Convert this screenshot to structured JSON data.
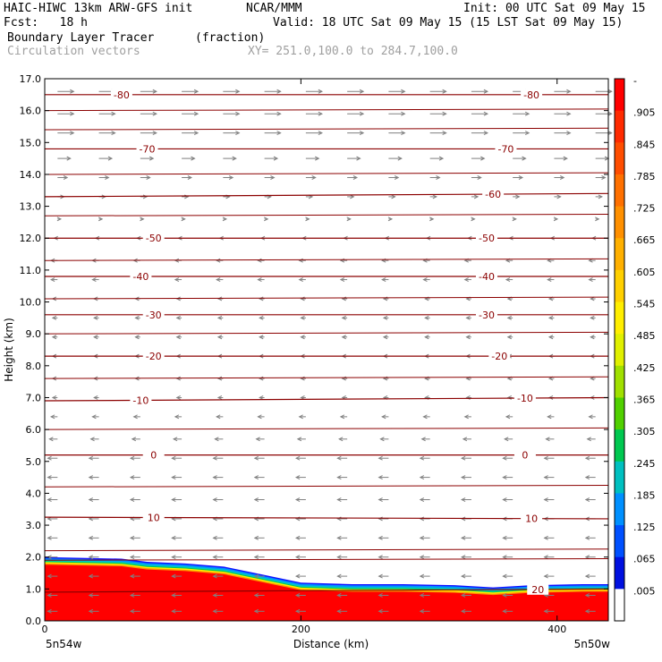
{
  "header": {
    "model": "HAIC-HIWC 13km ARW-GFS init",
    "org": "NCAR/MMM",
    "init": "Init: 00 UTC Sat 09 May 15",
    "fcst": "Fcst:   18 h",
    "valid": "Valid: 18 UTC Sat 09 May 15 (15 LST Sat 09 May 15)",
    "field": "Boundary Layer Tracer",
    "units": "(fraction)",
    "vectors": "Circulation vectors",
    "xy": "XY= 251.0,100.0 to 284.7,100.0"
  },
  "colors": {
    "isotherm": "#8b0000",
    "vector": "#808080",
    "frame": "#000000"
  },
  "chart_data": {
    "type": "heatmap",
    "xlabel": "Distance (km)",
    "ylabel": "Height (km)",
    "xlim": [
      0,
      440
    ],
    "ylim": [
      0,
      17
    ],
    "x_ticks": [
      "0",
      "200",
      "400"
    ],
    "x_tick_values": [
      0,
      200,
      400
    ],
    "x_end_labels": [
      "5n54w",
      "5n50w"
    ],
    "y_ticks": [
      "0.0",
      "1.0",
      "2.0",
      "3.0",
      "4.0",
      "5.0",
      "6.0",
      "7.0",
      "8.0",
      "9.0",
      "10.0",
      "11.0",
      "12.0",
      "13.0",
      "14.0",
      "15.0",
      "16.0",
      "17.0"
    ],
    "colorbar": {
      "labels": [
        "-",
        ".905",
        ".845",
        ".785",
        ".725",
        ".665",
        ".605",
        ".545",
        ".485",
        ".425",
        ".365",
        ".305",
        ".245",
        ".185",
        ".125",
        ".065",
        ".005"
      ],
      "colors": [
        "#ff0000",
        "#ff2a00",
        "#ff4d00",
        "#ff7000",
        "#ff9000",
        "#ffb000",
        "#ffd000",
        "#ffee00",
        "#e0f000",
        "#a0e000",
        "#50d000",
        "#00c850",
        "#00c0c0",
        "#0090ff",
        "#0050ff",
        "#0010e0",
        "#ffffff"
      ]
    },
    "tracer_top_km": [
      [
        0,
        2.0
      ],
      [
        60,
        1.95
      ],
      [
        80,
        1.85
      ],
      [
        110,
        1.8
      ],
      [
        140,
        1.7
      ],
      [
        170,
        1.45
      ],
      [
        200,
        1.2
      ],
      [
        240,
        1.15
      ],
      [
        280,
        1.15
      ],
      [
        320,
        1.12
      ],
      [
        350,
        1.05
      ],
      [
        380,
        1.12
      ],
      [
        420,
        1.15
      ],
      [
        440,
        1.15
      ]
    ],
    "isotherms": [
      {
        "label": "-80",
        "y_km": [
          16.5,
          16.5
        ],
        "label_x": [
          60,
          380
        ]
      },
      {
        "label": "-70",
        "y_km": [
          14.8,
          14.8
        ],
        "label_x": [
          80,
          360
        ]
      },
      {
        "label": "-60",
        "y_km": [
          13.3,
          13.4
        ],
        "label_x": [
          350
        ]
      },
      {
        "label": "-50",
        "y_km": [
          12.0,
          12.0
        ],
        "label_x": [
          85,
          345
        ]
      },
      {
        "label": "-40",
        "y_km": [
          10.8,
          10.8
        ],
        "label_x": [
          75,
          345
        ]
      },
      {
        "label": "-30",
        "y_km": [
          9.6,
          9.6
        ],
        "label_x": [
          85,
          345
        ]
      },
      {
        "label": "-20",
        "y_km": [
          8.3,
          8.3
        ],
        "label_x": [
          85,
          355
        ]
      },
      {
        "label": "-10",
        "y_km": [
          6.9,
          7.0
        ],
        "label_x": [
          75,
          375
        ]
      },
      {
        "label": "0",
        "y_km": [
          5.2,
          5.2
        ],
        "label_x": [
          85,
          375
        ]
      },
      {
        "label": "10",
        "y_km": [
          3.25,
          3.2
        ],
        "label_x": [
          85,
          380
        ]
      },
      {
        "label": "20",
        "y_km": [
          0.9,
          1.0
        ],
        "label_x": [
          385
        ]
      }
    ],
    "vector_rows": [
      {
        "y_km": 16.6,
        "u": 1.0
      },
      {
        "y_km": 15.9,
        "u": 1.0
      },
      {
        "y_km": 15.3,
        "u": 1.0
      },
      {
        "y_km": 14.5,
        "u": 0.8
      },
      {
        "y_km": 13.9,
        "u": 0.6
      },
      {
        "y_km": 13.3,
        "u": 0.4
      },
      {
        "y_km": 12.6,
        "u": 0.2
      },
      {
        "y_km": 12.0,
        "u": -0.2
      },
      {
        "y_km": 11.3,
        "u": -0.4
      },
      {
        "y_km": 10.7,
        "u": -0.4
      },
      {
        "y_km": 10.1,
        "u": -0.3
      },
      {
        "y_km": 9.5,
        "u": -0.3
      },
      {
        "y_km": 8.9,
        "u": -0.3
      },
      {
        "y_km": 8.3,
        "u": -0.3
      },
      {
        "y_km": 7.6,
        "u": -0.3
      },
      {
        "y_km": 7.0,
        "u": -0.3
      },
      {
        "y_km": 6.4,
        "u": -0.4
      },
      {
        "y_km": 5.7,
        "u": -0.5
      },
      {
        "y_km": 5.1,
        "u": -0.6
      },
      {
        "y_km": 4.5,
        "u": -0.6
      },
      {
        "y_km": 3.8,
        "u": -0.6
      },
      {
        "y_km": 3.2,
        "u": -0.6
      },
      {
        "y_km": 2.6,
        "u": -0.6
      },
      {
        "y_km": 2.0,
        "u": -0.6
      },
      {
        "y_km": 1.4,
        "u": -0.6
      },
      {
        "y_km": 0.8,
        "u": -0.6
      },
      {
        "y_km": 0.3,
        "u": -0.6
      }
    ]
  }
}
